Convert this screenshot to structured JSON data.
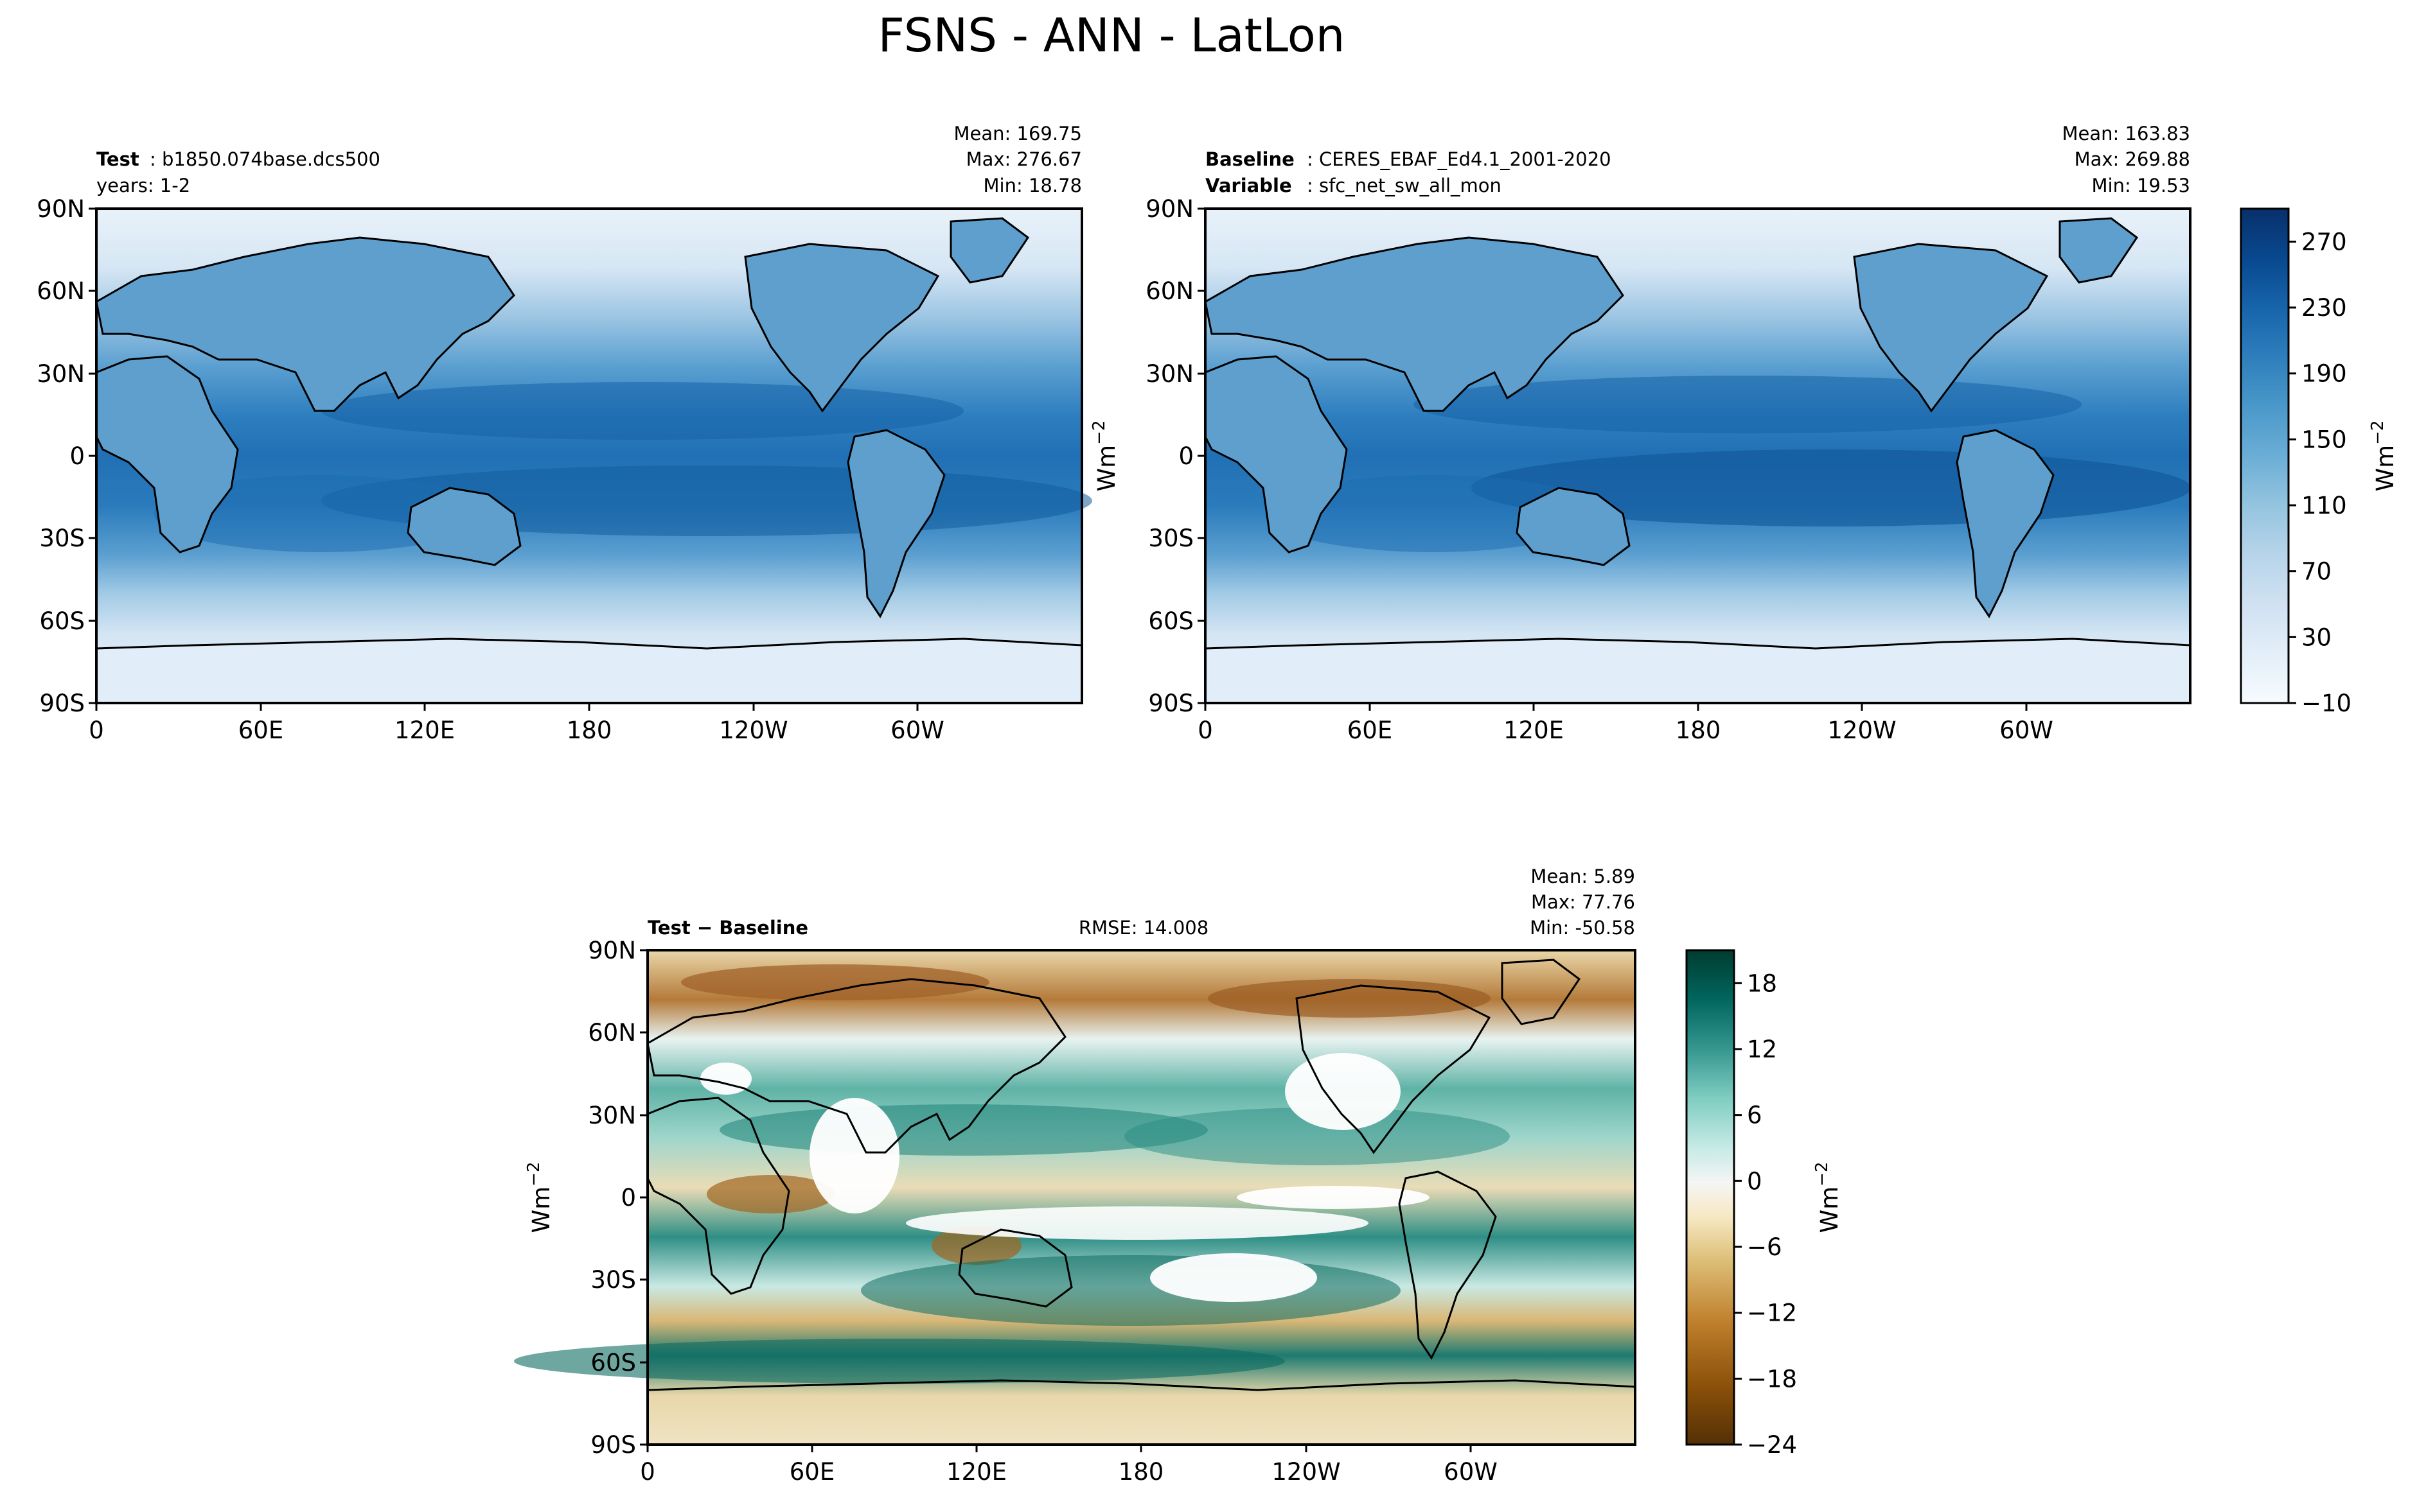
{
  "figure_title": "FSNS - ANN - LatLon",
  "colors": {
    "blues": [
      "#f7fbff",
      "#e3eef8",
      "#d0e1f2",
      "#b7d4ea",
      "#94c4df",
      "#6aaed6",
      "#4a98c9",
      "#2e7ebc",
      "#1764ab",
      "#08488e",
      "#08306b"
    ],
    "brbg": [
      "#543005",
      "#8c510a",
      "#bf812d",
      "#dfc27d",
      "#f6e8c3",
      "#f5f5f5",
      "#c7eae5",
      "#80cdc1",
      "#35978f",
      "#01665e",
      "#003c30"
    ],
    "land_outline": "#000000"
  },
  "panels": {
    "test": {
      "label_bold": "Test",
      "label_rest": ": b1850.074base.dcs500",
      "label2": "years: 1-2",
      "stats": [
        "Mean: 169.75",
        "Max: 276.67",
        "Min: 18.78"
      ]
    },
    "baseline": {
      "label_bold": "Baseline",
      "label_rest": ": CERES_EBAF_Ed4.1_2001-2020",
      "label2_bold": "Variable",
      "label2_rest": ": sfc_net_sw_all_mon",
      "stats": [
        "Mean: 163.83",
        "Max: 269.88",
        "Min: 19.53"
      ]
    },
    "diff": {
      "label": "Test − Baseline",
      "rmse": "RMSE: 14.008",
      "stats": [
        "Mean:  5.89",
        "Max: 77.76",
        "Min: -50.58"
      ]
    }
  },
  "chart_data": [
    {
      "type": "heatmap",
      "panel": "Test",
      "title": "b1850.074base.dcs500",
      "subtitle": "years: 1-2",
      "stats": {
        "mean": 169.75,
        "max": 276.67,
        "min": 18.78
      },
      "x_ticks": [
        "0",
        "60E",
        "120E",
        "180",
        "120W",
        "60W"
      ],
      "y_ticks": [
        "90N",
        "60N",
        "30N",
        "0",
        "30S",
        "60S",
        "90S"
      ],
      "xlim": [
        0,
        360
      ],
      "ylim": [
        -90,
        90
      ],
      "colormap": "Blues"
    },
    {
      "type": "heatmap",
      "panel": "Baseline",
      "title": "CERES_EBAF_Ed4.1_2001-2020",
      "subtitle": "sfc_net_sw_all_mon",
      "stats": {
        "mean": 163.83,
        "max": 269.88,
        "min": 19.53
      },
      "x_ticks": [
        "0",
        "60E",
        "120E",
        "180",
        "120W",
        "60W"
      ],
      "y_ticks": [
        "90N",
        "60N",
        "30N",
        "0",
        "30S",
        "60S",
        "90S"
      ],
      "xlim": [
        0,
        360
      ],
      "ylim": [
        -90,
        90
      ],
      "colormap": "Blues",
      "colorbar": {
        "ticks": [
          270,
          230,
          190,
          150,
          110,
          70,
          30,
          -10
        ],
        "tick_labels": [
          "270",
          "230",
          "190",
          "150",
          "110",
          "70",
          "30",
          "−10"
        ],
        "range": [
          -10,
          290
        ],
        "label": "Wm",
        "label_exp": "−2"
      }
    },
    {
      "type": "heatmap",
      "panel": "Test − Baseline",
      "rmse": 14.008,
      "stats": {
        "mean": 5.89,
        "max": 77.76,
        "min": -50.58
      },
      "x_ticks": [
        "0",
        "60E",
        "120E",
        "180",
        "120W",
        "60W"
      ],
      "y_ticks": [
        "90N",
        "60N",
        "30N",
        "0",
        "30S",
        "60S",
        "90S"
      ],
      "xlim": [
        0,
        360
      ],
      "ylim": [
        -90,
        90
      ],
      "colormap": "BrBG",
      "colorbar": {
        "ticks": [
          18,
          12,
          6,
          0,
          -6,
          -12,
          -18,
          -24
        ],
        "tick_labels": [
          "18",
          "12",
          "6",
          "0",
          "−6",
          "−12",
          "−18",
          "−24"
        ],
        "range": [
          -24,
          21
        ],
        "label": "Wm",
        "label_exp": "−2"
      }
    }
  ],
  "axis_labels": {
    "test_baseline_ylabel": "Wm",
    "diff_ylabel": "Wm",
    "exp": "−2"
  }
}
